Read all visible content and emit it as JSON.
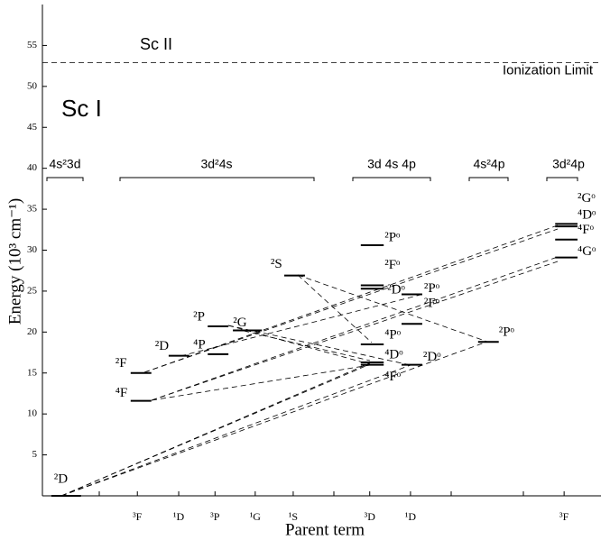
{
  "chart_data": {
    "type": "level-diagram",
    "ylabel": "Energy (10³ cm⁻¹)",
    "xlabel": "Parent term",
    "ylim": [
      0,
      60
    ],
    "yticks": [
      5,
      10,
      15,
      20,
      25,
      30,
      35,
      40,
      45,
      50,
      55
    ],
    "xlim": [
      0,
      100
    ],
    "xticks": [
      {
        "value": 17.0,
        "label": "³F"
      },
      {
        "value": 24.4,
        "label": "¹D"
      },
      {
        "value": 30.9,
        "label": "³P"
      },
      {
        "value": 38.1,
        "label": "¹G"
      },
      {
        "value": 44.9,
        "label": "¹S"
      },
      {
        "value": 58.6,
        "label": "³D"
      },
      {
        "value": 65.9,
        "label": "¹D"
      },
      {
        "value": 93.4,
        "label": "³F"
      }
    ],
    "ion_upper": "Sc II",
    "ion_lower": "Sc I",
    "ionization_limit": 52.9,
    "ionization_label": "Ionization Limit",
    "groups": [
      "4s²3d",
      "3d²4s",
      "3d 4s 4p",
      "4s²4p",
      "3d²4p"
    ],
    "levels": [
      {
        "label": "²D",
        "energy": 0,
        "x": [
          1.6,
          6.9
        ]
      },
      {
        "label": "⁴F",
        "energy": 11.6,
        "x": [
          15.8,
          19.5
        ]
      },
      {
        "label": "²F",
        "energy": 15.0,
        "x": [
          15.8,
          19.5
        ]
      },
      {
        "label": "²D",
        "energy": 17.1,
        "x": [
          22.6,
          26.3
        ]
      },
      {
        "label": "⁴P",
        "energy": 17.3,
        "x": [
          29.6,
          33.3
        ]
      },
      {
        "label": "²P",
        "energy": 20.7,
        "x": [
          29.6,
          33.3
        ]
      },
      {
        "label": "²G",
        "energy": 20.2,
        "x": [
          34.1,
          39.3
        ]
      },
      {
        "label": "²S",
        "energy": 26.9,
        "x": [
          43.3,
          47.0
        ]
      },
      {
        "label": "⁴Fᵒ",
        "energy": 16.0,
        "x": [
          57.0,
          61.1
        ]
      },
      {
        "label": "⁴Dᵒ",
        "energy": 16.3,
        "x": [
          57.0,
          61.1
        ]
      },
      {
        "label": "⁴Pᵒ",
        "energy": 18.5,
        "x": [
          57.0,
          61.1
        ]
      },
      {
        "label": "²Dᵒ",
        "energy": 25.3,
        "x": [
          57.0,
          61.1
        ]
      },
      {
        "label": "²Fᵒ",
        "energy": 25.7,
        "x": [
          57.0,
          61.1
        ]
      },
      {
        "label": "²Pᵒ",
        "energy": 30.6,
        "x": [
          57.0,
          61.1
        ]
      },
      {
        "label": "²Dᵒ",
        "energy": 16.0,
        "x": [
          64.3,
          68.0
        ]
      },
      {
        "label": "²Fᵒ",
        "energy": 21.0,
        "x": [
          64.3,
          68.0
        ]
      },
      {
        "label": "²Pᵒ",
        "energy": 24.6,
        "x": [
          64.3,
          68.0
        ]
      },
      {
        "label": "²Pᵒ",
        "energy": 18.8,
        "x": [
          78.0,
          81.7
        ]
      },
      {
        "label": "⁴Gᵒ",
        "energy": 29.1,
        "x": [
          91.8,
          95.8
        ]
      },
      {
        "label": "⁴Fᵒ",
        "energy": 31.3,
        "x": [
          91.8,
          95.8
        ]
      },
      {
        "label": "⁴Dᵒ",
        "energy": 32.9,
        "x": [
          91.8,
          95.8
        ]
      },
      {
        "label": "²Gᵒ",
        "energy": 33.2,
        "x": [
          91.8,
          95.8
        ]
      }
    ]
  }
}
